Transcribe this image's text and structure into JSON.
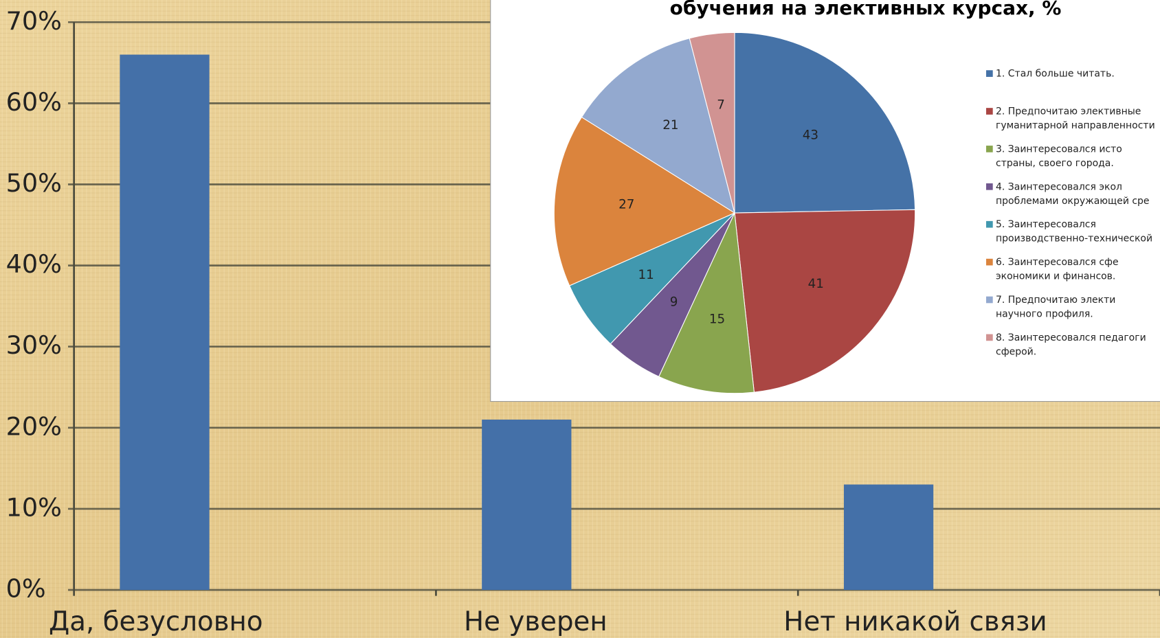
{
  "chart_data": [
    {
      "type": "bar",
      "categories": [
        "Да, безусловно",
        "Не уверен",
        "Нет никакой связи"
      ],
      "values": [
        66,
        21,
        13
      ],
      "color": "#4470a8",
      "ylim": [
        0,
        70
      ],
      "yticks": [
        {
          "value": 0,
          "label": "0%"
        },
        {
          "value": 10,
          "label": "10%"
        },
        {
          "value": 20,
          "label": "20%"
        },
        {
          "value": 30,
          "label": "30%"
        },
        {
          "value": 40,
          "label": "40%"
        },
        {
          "value": 50,
          "label": "50%"
        },
        {
          "value": 60,
          "label": "60%"
        },
        {
          "value": 70,
          "label": "70%"
        }
      ],
      "grid": true
    },
    {
      "type": "pie",
      "title": "обучения на элективных курсах, %",
      "categories": [
        [
          "1.      Стал больше читать."
        ],
        [
          "2.      Предпочитаю элективные",
          "гуманитарной направленности"
        ],
        [
          "3.            Заинтересовался исто",
          "страны, своего города."
        ],
        [
          "4.            Заинтересовался экол",
          "проблемами окружающей сре"
        ],
        [
          "5.            Заинтересовался",
          "производственно-технической"
        ],
        [
          "6.            Заинтересовался сфе",
          "экономики и финансов."
        ],
        [
          "7.            Предпочитаю электи",
          "научного профиля."
        ],
        [
          "8.      Заинтересовался педагоги",
          "сферой."
        ]
      ],
      "values": [
        43,
        41,
        15,
        9,
        11,
        27,
        21,
        7
      ],
      "colors": [
        "#4572a7",
        "#aa4643",
        "#89a54e",
        "#71588f",
        "#4198af",
        "#db843d",
        "#93a9cf",
        "#d19392"
      ],
      "legend": "right"
    }
  ]
}
